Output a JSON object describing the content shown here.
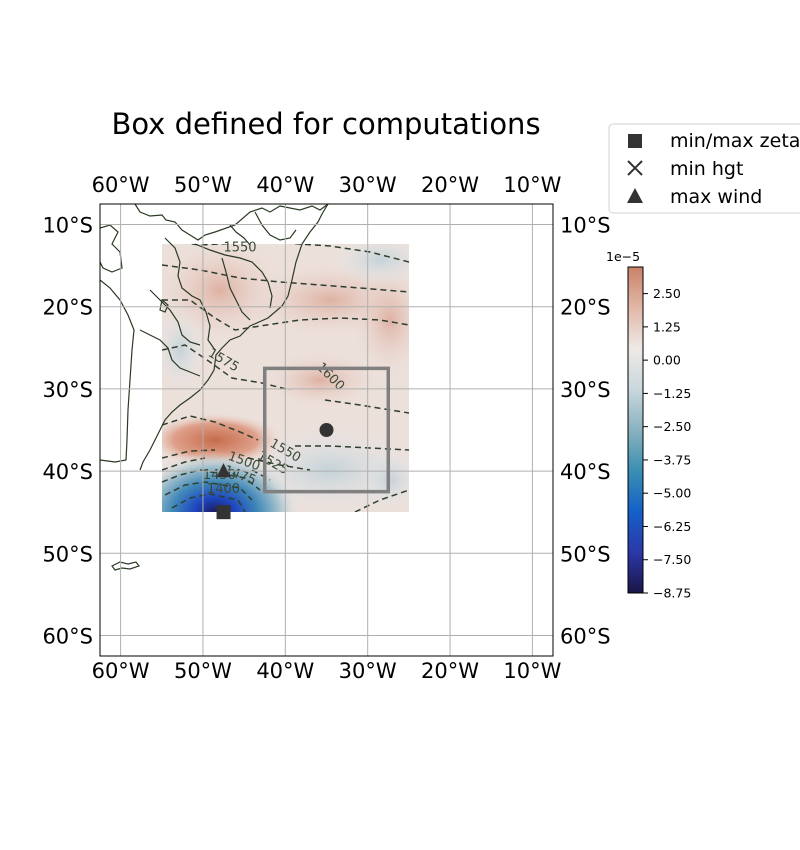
{
  "title": "Box defined for computations",
  "map": {
    "lon_range": [
      -62.5,
      -7.5
    ],
    "lat_range": [
      -62.5,
      -7.5
    ],
    "lon_ticks": [
      {
        "value": -60,
        "label": "60°W"
      },
      {
        "value": -50,
        "label": "50°W"
      },
      {
        "value": -40,
        "label": "40°W"
      },
      {
        "value": -30,
        "label": "30°W"
      },
      {
        "value": -20,
        "label": "20°W"
      },
      {
        "value": -10,
        "label": "10°W"
      }
    ],
    "lat_ticks": [
      {
        "value": -10,
        "label": "10°S"
      },
      {
        "value": -20,
        "label": "20°S"
      },
      {
        "value": -30,
        "label": "30°S"
      },
      {
        "value": -40,
        "label": "40°S"
      },
      {
        "value": -50,
        "label": "50°S"
      },
      {
        "value": -60,
        "label": "60°S"
      }
    ],
    "grid": true,
    "field_extent": {
      "lon": [
        -55,
        -25
      ],
      "lat": [
        -45,
        -12.5
      ]
    },
    "computation_box": {
      "lon": [
        -42.5,
        -27.5
      ],
      "lat": [
        -42.5,
        -27.5
      ],
      "color": "#808080"
    },
    "center_point": {
      "lon": -35,
      "lat": -35
    },
    "markers": {
      "min_max_zeta": {
        "lon": -47.5,
        "lat": -45
      },
      "max_wind": {
        "lon": -47.5,
        "lat": -40
      }
    },
    "contour_labels": [
      {
        "text": "1550",
        "lon": -45.5,
        "lat": -12.8,
        "angle": 0
      },
      {
        "text": "1575",
        "lon": -47.5,
        "lat": -26.5,
        "angle": 30
      },
      {
        "text": "1600",
        "lon": -34.5,
        "lat": -28.5,
        "angle": 45
      },
      {
        "text": "1550",
        "lon": -40,
        "lat": -37.5,
        "angle": 30
      },
      {
        "text": "1525",
        "lon": -41.5,
        "lat": -39,
        "angle": 30
      },
      {
        "text": "1500",
        "lon": -45,
        "lat": -38.8,
        "angle": 20
      },
      {
        "text": "1475",
        "lon": -45.5,
        "lat": -40.5,
        "angle": 20
      },
      {
        "text": "1450",
        "lon": -48,
        "lat": -40.5,
        "angle": 0
      },
      {
        "text": "1400",
        "lon": -47.5,
        "lat": -42.2,
        "angle": 0
      }
    ]
  },
  "colorbar": {
    "exponent_label": "1e−5",
    "vmin": -8.75,
    "vmax": 3.5,
    "ticks": [
      {
        "value": 2.5,
        "label": "2.50"
      },
      {
        "value": 1.25,
        "label": "1.25"
      },
      {
        "value": 0,
        "label": "0.00"
      },
      {
        "value": -1.25,
        "label": "−1.25"
      },
      {
        "value": -2.5,
        "label": "−2.50"
      },
      {
        "value": -3.75,
        "label": "−3.75"
      },
      {
        "value": -5,
        "label": "−5.00"
      },
      {
        "value": -6.25,
        "label": "−6.25"
      },
      {
        "value": -7.5,
        "label": "−7.50"
      },
      {
        "value": -8.75,
        "label": "−8.75"
      }
    ],
    "colors": [
      "#1a1545",
      "#2b38a8",
      "#1560c8",
      "#3a8fb2",
      "#8ab2c0",
      "#c9d7dc",
      "#efe9e6",
      "#e2b8a8",
      "#c9826a"
    ]
  },
  "legend": {
    "items": [
      {
        "marker": "square",
        "label": "min/max zeta"
      },
      {
        "marker": "cross",
        "label": "min hgt"
      },
      {
        "marker": "triangle",
        "label": "max wind"
      }
    ]
  }
}
